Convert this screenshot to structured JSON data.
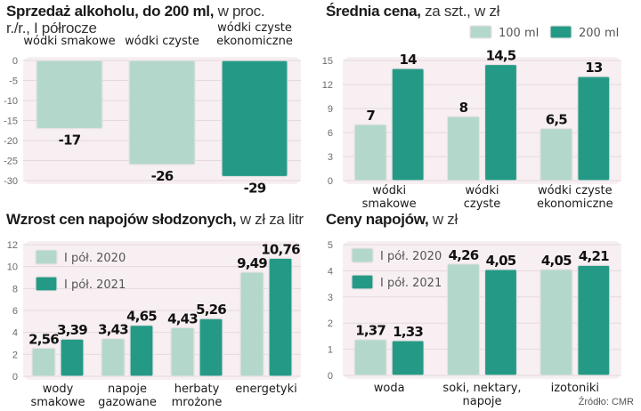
{
  "colors": {
    "light": "#b3d8cb",
    "dark": "#249a86",
    "plot_bg": "#f7eff2",
    "grid": "#e6d9de",
    "bar_border": "#e8e2e4"
  },
  "source": "Źródło: CMR",
  "chart_data": [
    {
      "id": "sales",
      "type": "bar",
      "title": "Sprzedaż alkoholu, do 200 ml,",
      "subtitle": "w proc. r./r., I półrocze",
      "xlabel": "",
      "ylabel": "",
      "ylim": [
        -30,
        0
      ],
      "yticks": [
        0,
        -5,
        -10,
        -15,
        -20,
        -25,
        -30
      ],
      "grid": true,
      "categories": [
        "wódki smakowe",
        "wódki czyste",
        "wódki czyste ekonomiczne"
      ],
      "category_lines": [
        [
          "wódki smakowe"
        ],
        [
          "wódki czyste"
        ],
        [
          "wódki czyste",
          "ekonomiczne"
        ]
      ],
      "series": [
        {
          "name": "",
          "values": [
            -17,
            -26,
            -29
          ],
          "labels": [
            "-17",
            "-26",
            "-29"
          ],
          "colors": [
            "light",
            "light",
            "dark"
          ]
        }
      ]
    },
    {
      "id": "avgprice",
      "type": "bar",
      "title": "Średnia cena,",
      "subtitle": "za szt., w zł",
      "xlabel": "",
      "ylabel": "",
      "ylim": [
        0,
        15
      ],
      "yticks": [
        0,
        3,
        6,
        9,
        12,
        15
      ],
      "grid": true,
      "legend": "top-right",
      "categories": [
        "wódki smakowe",
        "wódki czyste",
        "wódki czyste ekonomiczne"
      ],
      "category_lines": [
        [
          "wódki",
          "smakowe"
        ],
        [
          "wódki",
          "czyste"
        ],
        [
          "wódki czyste",
          "ekonomiczne"
        ]
      ],
      "series": [
        {
          "name": "100 ml",
          "values": [
            7,
            8,
            6.5
          ],
          "labels": [
            "7",
            "8",
            "6,5"
          ],
          "color": "light"
        },
        {
          "name": "200 ml",
          "values": [
            14,
            14.5,
            13
          ],
          "labels": [
            "14",
            "14,5",
            "13"
          ],
          "color": "dark"
        }
      ]
    },
    {
      "id": "sweet",
      "type": "bar",
      "title": "Wzrost cen napojów słodzonych,",
      "subtitle": "w zł za litr",
      "xlabel": "",
      "ylabel": "",
      "ylim": [
        0,
        12
      ],
      "yticks": [
        0,
        2,
        4,
        6,
        8,
        10,
        12
      ],
      "grid": true,
      "legend": "top-left",
      "categories": [
        "wody smakowe",
        "napoje gazowane",
        "herbaty mrożone",
        "energetyki"
      ],
      "category_lines": [
        [
          "wody",
          "smakowe"
        ],
        [
          "napoje",
          "gazowane"
        ],
        [
          "herbaty",
          "mrożone"
        ],
        [
          "energetyki"
        ]
      ],
      "series": [
        {
          "name": "I pół. 2020",
          "values": [
            2.56,
            3.43,
            4.43,
            9.49
          ],
          "labels": [
            "2,56",
            "3,43",
            "4,43",
            "9,49"
          ],
          "color": "light"
        },
        {
          "name": "I pół. 2021",
          "values": [
            3.39,
            4.65,
            5.26,
            10.76
          ],
          "labels": [
            "3,39",
            "4,65",
            "5,26",
            "10,76"
          ],
          "color": "dark"
        }
      ]
    },
    {
      "id": "drinks",
      "type": "bar",
      "title": "Ceny napojów,",
      "subtitle": "w zł",
      "xlabel": "",
      "ylabel": "",
      "ylim": [
        0,
        5
      ],
      "yticks": [
        0,
        1,
        2,
        3,
        4,
        5
      ],
      "grid": true,
      "legend": "top-left",
      "categories": [
        "woda",
        "soki, nektary, napoje",
        "izotoniki"
      ],
      "category_lines": [
        [
          "woda"
        ],
        [
          "soki, nektary,",
          "napoje"
        ],
        [
          "izotoniki"
        ]
      ],
      "series": [
        {
          "name": "I pół. 2020",
          "values": [
            1.37,
            4.26,
            4.05
          ],
          "labels": [
            "1,37",
            "4,26",
            "4,05"
          ],
          "color": "light"
        },
        {
          "name": "I pół. 2021",
          "values": [
            1.33,
            4.05,
            4.21
          ],
          "labels": [
            "1,33",
            "4,05",
            "4,21"
          ],
          "color": "dark"
        }
      ]
    }
  ]
}
